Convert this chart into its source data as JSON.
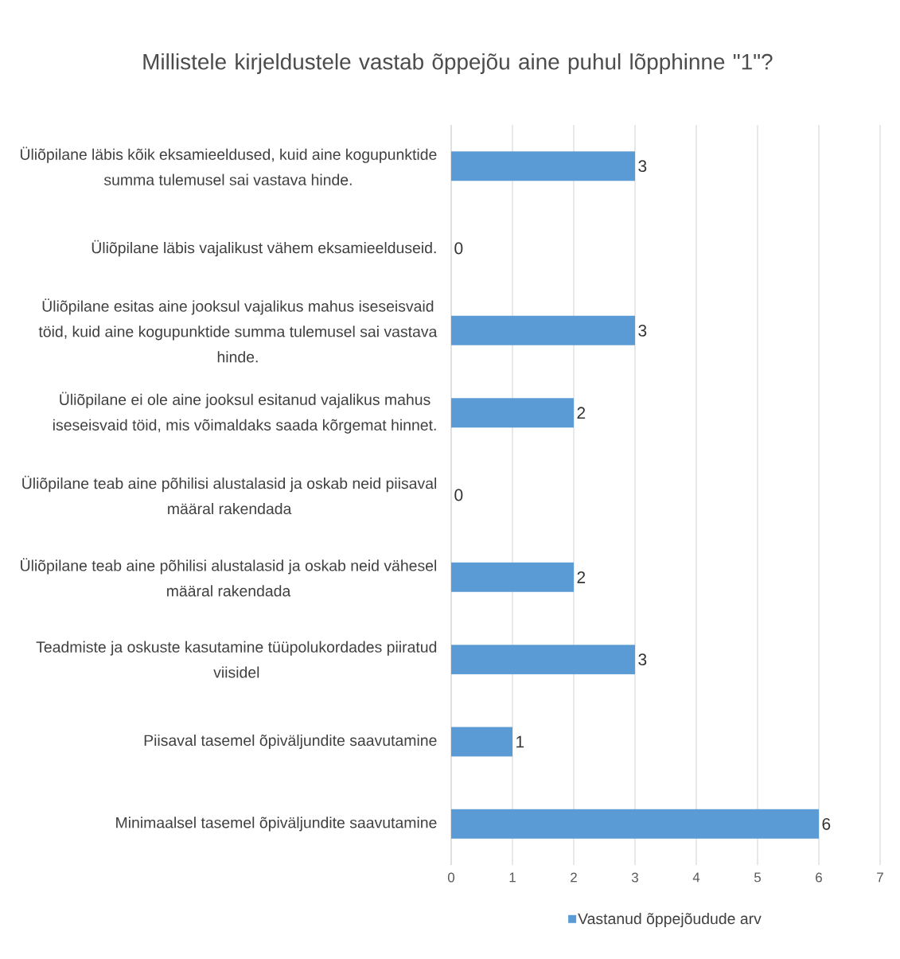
{
  "chart_data": {
    "type": "bar",
    "orientation": "horizontal",
    "title": "Millistele kirjeldustele vastab õppejõu aine puhul lõpphinne \"1\"?",
    "categories": [
      "Üliõpilane läbis kõik eksamieeldused, kuid aine kogupunktide summa tulemusel sai vastava hinde.",
      "Üliõpilane läbis vajalikust vähem eksamieelduseid.",
      "Üliõpilane esitas aine jooksul vajalikus mahus iseseisvaid töid, kuid aine kogupunktide summa tulemusel sai vastava hinde.",
      "Üliõpilane ei ole aine jooksul esitanud vajalikus mahus iseseisvaid töid, mis võimaldaks saada kõrgemat hinnet.",
      "Üliõpilane teab aine põhilisi alustalasid ja oskab neid piisaval määral rakendada",
      "Üliõpilane teab aine põhilisi alustalasid ja oskab neid vähesel määral rakendada",
      "Teadmiste ja oskuste kasutamine tüüpolukordades piiratud viisidel",
      "Piisaval tasemel õpiväljundite saavutamine",
      "Minimaalsel tasemel õpiväljundite saavutamine"
    ],
    "series": [
      {
        "name": "Vastanud õppejõudude arv",
        "color": "#5b9bd5",
        "values": [
          3,
          0,
          3,
          2,
          0,
          2,
          3,
          1,
          6
        ]
      }
    ],
    "xlim": [
      0,
      7
    ],
    "xticks": [
      0,
      1,
      2,
      3,
      4,
      5,
      6,
      7
    ],
    "grid": "x",
    "legend": "bottom",
    "data_labels": true
  }
}
